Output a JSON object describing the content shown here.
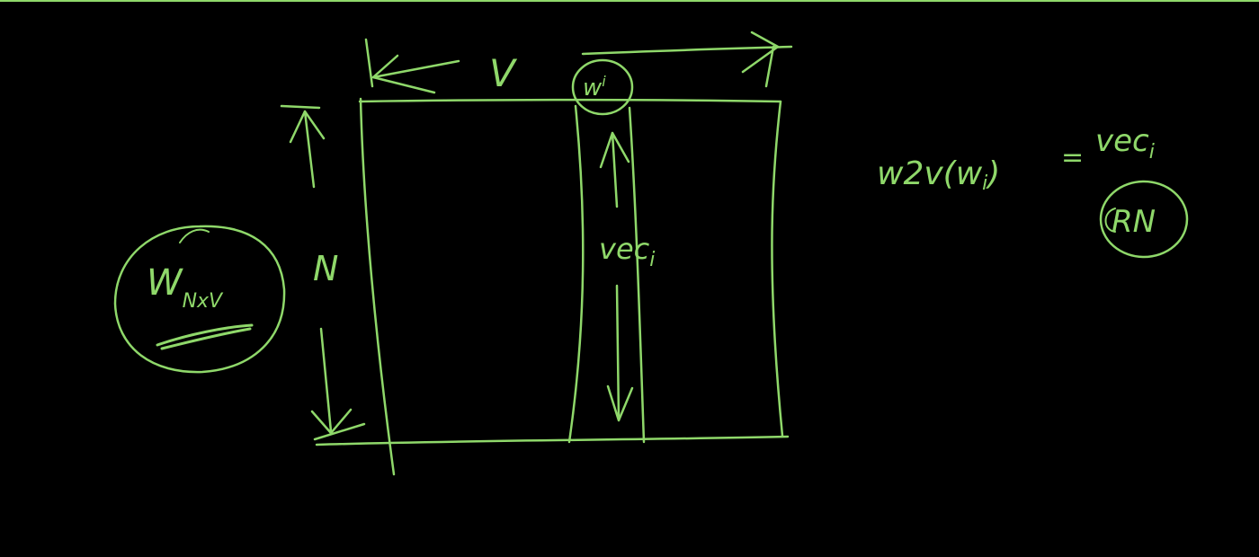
{
  "ink_color": "#8fd86a",
  "background_color": "#000000",
  "labels": {
    "width_dim": "V",
    "height_dim": "N",
    "word_cell": "w",
    "word_cell_sub": "i",
    "column_vector": "vec",
    "column_vector_sub": "i",
    "matrix_name": "W",
    "matrix_sub": "NxV",
    "equation_lhs": "w2v(w",
    "equation_lhs_sub": "i",
    "equation_close": ")",
    "equation_eq": "=",
    "equation_rhs": "vec",
    "equation_rhs_sub": "i",
    "circled_note": "RN"
  }
}
